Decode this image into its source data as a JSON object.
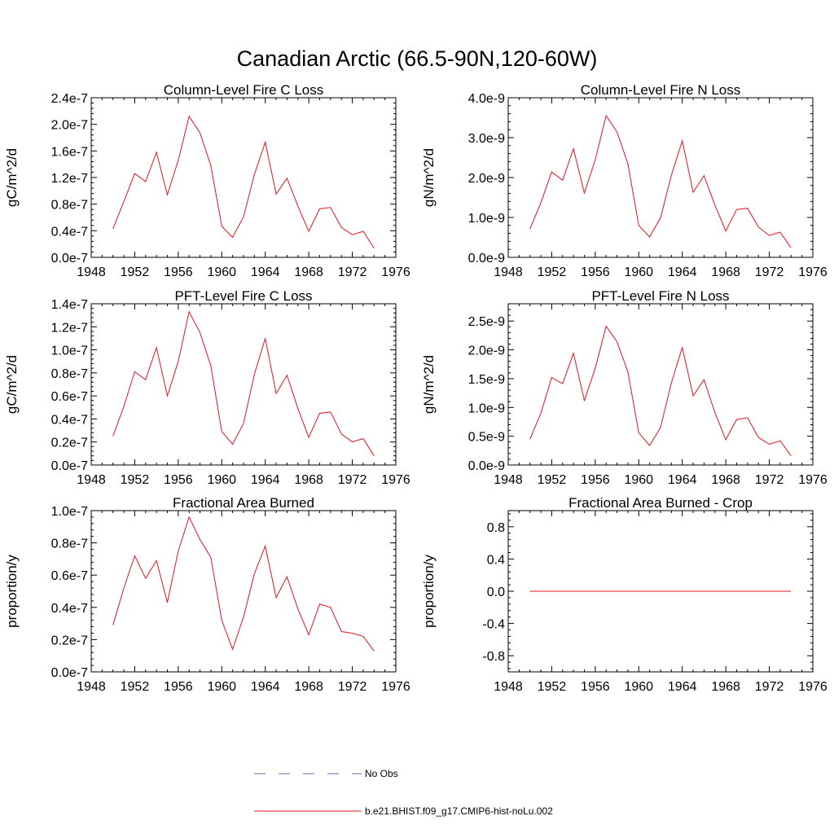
{
  "title": "Canadian Arctic (66.5-90N,120-60W)",
  "colors": {
    "model": "#e0141e",
    "obs": "#6a6aa8"
  },
  "legend": {
    "entries": [
      {
        "label": "No Obs",
        "style": "dashed",
        "color": "#6a6aa8"
      },
      {
        "label": "b.e21.BHIST.f09_g17.CMIP6-hist-noLu.002",
        "style": "solid",
        "color": "#e0141e"
      }
    ]
  },
  "chart_data": [
    {
      "type": "line",
      "title": "Column-Level Fire C Loss",
      "ylabel": "gC/m^2/d",
      "xlim": [
        1948,
        1976
      ],
      "ylim": [
        0,
        2.4e-07
      ],
      "xticks": [
        1948,
        1952,
        1956,
        1960,
        1964,
        1968,
        1972,
        1976
      ],
      "xtick_labels": [
        "1948",
        "1952",
        "1956",
        "1960",
        "1964",
        "1968",
        "1972",
        "1976"
      ],
      "yticks": [
        0,
        4e-08,
        8e-08,
        1.2e-07,
        1.6e-07,
        2e-07,
        2.4e-07
      ],
      "ytick_labels": [
        "0.0e-7",
        "0.4e-7",
        "0.8e-7",
        "1.2e-7",
        "1.6e-7",
        "2.0e-7",
        "2.4e-7"
      ],
      "x": [
        1950,
        1951,
        1952,
        1953,
        1954,
        1955,
        1956,
        1957,
        1958,
        1959,
        1960,
        1961,
        1962,
        1963,
        1964,
        1965,
        1966,
        1967,
        1968,
        1969,
        1970,
        1971,
        1972,
        1973,
        1974
      ],
      "series": [
        {
          "name": "b.e21.BHIST.f09_g17.CMIP6-hist-noLu.002",
          "values": [
            4.3e-08,
            8.4e-08,
            1.26e-07,
            1.14e-07,
            1.58e-07,
            9.4e-08,
            1.46e-07,
            2.12e-07,
            1.87e-07,
            1.38e-07,
            4.7e-08,
            3e-08,
            6.1e-08,
            1.25e-07,
            1.73e-07,
            9.5e-08,
            1.19e-07,
            7.7e-08,
            3.9e-08,
            7.3e-08,
            7.5e-08,
            4.5e-08,
            3.4e-08,
            3.9e-08,
            1.4e-08
          ]
        }
      ]
    },
    {
      "type": "line",
      "title": "Column-Level Fire N Loss",
      "ylabel": "gN/m^2/d",
      "xlim": [
        1948,
        1976
      ],
      "ylim": [
        0,
        4e-09
      ],
      "xticks": [
        1948,
        1952,
        1956,
        1960,
        1964,
        1968,
        1972,
        1976
      ],
      "xtick_labels": [
        "1948",
        "1952",
        "1956",
        "1960",
        "1964",
        "1968",
        "1972",
        "1976"
      ],
      "yticks": [
        0,
        1e-09,
        2e-09,
        3e-09,
        4e-09
      ],
      "ytick_labels": [
        "0.0e-9",
        "1.0e-9",
        "2.0e-9",
        "3.0e-9",
        "4.0e-9"
      ],
      "x": [
        1950,
        1951,
        1952,
        1953,
        1954,
        1955,
        1956,
        1957,
        1958,
        1959,
        1960,
        1961,
        1962,
        1963,
        1964,
        1965,
        1966,
        1967,
        1968,
        1969,
        1970,
        1971,
        1972,
        1973,
        1974
      ],
      "series": [
        {
          "name": "b.e21.BHIST.f09_g17.CMIP6-hist-noLu.002",
          "values": [
            7.1e-10,
            1.37e-09,
            2.14e-09,
            1.93e-09,
            2.72e-09,
            1.61e-09,
            2.45e-09,
            3.55e-09,
            3.14e-09,
            2.35e-09,
            8e-10,
            5.1e-10,
            9.9e-10,
            2.06e-09,
            2.92e-09,
            1.63e-09,
            2.05e-09,
            1.31e-09,
            6.6e-10,
            1.2e-09,
            1.23e-09,
            7.6e-10,
            5.5e-10,
            6.3e-10,
            2.4e-10
          ]
        }
      ]
    },
    {
      "type": "line",
      "title": "PFT-Level Fire C Loss",
      "ylabel": "gC/m^2/d",
      "xlim": [
        1948,
        1976
      ],
      "ylim": [
        0,
        1.4e-07
      ],
      "xticks": [
        1948,
        1952,
        1956,
        1960,
        1964,
        1968,
        1972,
        1976
      ],
      "xtick_labels": [
        "1948",
        "1952",
        "1956",
        "1960",
        "1964",
        "1968",
        "1972",
        "1976"
      ],
      "yticks": [
        0,
        2e-08,
        4e-08,
        6e-08,
        8e-08,
        1e-07,
        1.2e-07,
        1.4e-07
      ],
      "ytick_labels": [
        "0.0e-7",
        "0.2e-7",
        "0.4e-7",
        "0.6e-7",
        "0.8e-7",
        "1.0e-7",
        "1.2e-7",
        "1.4e-7"
      ],
      "x": [
        1950,
        1951,
        1952,
        1953,
        1954,
        1955,
        1956,
        1957,
        1958,
        1959,
        1960,
        1961,
        1962,
        1963,
        1964,
        1965,
        1966,
        1967,
        1968,
        1969,
        1970,
        1971,
        1972,
        1973,
        1974
      ],
      "series": [
        {
          "name": "b.e21.BHIST.f09_g17.CMIP6-hist-noLu.002",
          "values": [
            2.5e-08,
            5.1e-08,
            8.1e-08,
            7.4e-08,
            1.02e-07,
            6e-08,
            9e-08,
            1.33e-07,
            1.15e-07,
            8.6e-08,
            2.9e-08,
            1.8e-08,
            3.6e-08,
            7.9e-08,
            1.1e-07,
            6.2e-08,
            7.8e-08,
            4.9e-08,
            2.4e-08,
            4.5e-08,
            4.6e-08,
            2.7e-08,
            2e-08,
            2.3e-08,
            8e-09
          ]
        }
      ]
    },
    {
      "type": "line",
      "title": "PFT-Level Fire N Loss",
      "ylabel": "gN/m^2/d",
      "xlim": [
        1948,
        1976
      ],
      "ylim": [
        0,
        2.8e-09
      ],
      "xticks": [
        1948,
        1952,
        1956,
        1960,
        1964,
        1968,
        1972,
        1976
      ],
      "xtick_labels": [
        "1948",
        "1952",
        "1956",
        "1960",
        "1964",
        "1968",
        "1972",
        "1976"
      ],
      "yticks": [
        0,
        5e-10,
        1e-09,
        1.5e-09,
        2e-09,
        2.5e-09
      ],
      "ytick_labels": [
        "0.0e-9",
        "0.5e-9",
        "1.0e-9",
        "1.5e-9",
        "2.0e-9",
        "2.5e-9"
      ],
      "x": [
        1950,
        1951,
        1952,
        1953,
        1954,
        1955,
        1956,
        1957,
        1958,
        1959,
        1960,
        1961,
        1962,
        1963,
        1964,
        1965,
        1966,
        1967,
        1968,
        1969,
        1970,
        1971,
        1972,
        1973,
        1974
      ],
      "series": [
        {
          "name": "b.e21.BHIST.f09_g17.CMIP6-hist-noLu.002",
          "values": [
            4.5e-10,
            9e-10,
            1.52e-09,
            1.41e-09,
            1.94e-09,
            1.12e-09,
            1.68e-09,
            2.41e-09,
            2.14e-09,
            1.62e-09,
            5.6e-10,
            3.4e-10,
            6.5e-10,
            1.43e-09,
            2.04e-09,
            1.2e-09,
            1.48e-09,
            9.1e-10,
            4.4e-10,
            7.9e-10,
            8.2e-10,
            4.8e-10,
            3.6e-10,
            4.2e-10,
            1.6e-10
          ]
        }
      ]
    },
    {
      "type": "line",
      "title": "Fractional Area Burned",
      "ylabel": "proportion/y",
      "xlim": [
        1948,
        1976
      ],
      "ylim": [
        0,
        1e-07
      ],
      "xticks": [
        1948,
        1952,
        1956,
        1960,
        1964,
        1968,
        1972,
        1976
      ],
      "xtick_labels": [
        "1948",
        "1952",
        "1956",
        "1960",
        "1964",
        "1968",
        "1972",
        "1976"
      ],
      "yticks": [
        0,
        2e-08,
        4e-08,
        6e-08,
        8e-08,
        1e-07
      ],
      "ytick_labels": [
        "0.0e-7",
        "0.2e-7",
        "0.4e-7",
        "0.6e-7",
        "0.8e-7",
        "1.0e-7"
      ],
      "x": [
        1950,
        1951,
        1952,
        1953,
        1954,
        1955,
        1956,
        1957,
        1958,
        1959,
        1960,
        1961,
        1962,
        1963,
        1964,
        1965,
        1966,
        1967,
        1968,
        1969,
        1970,
        1971,
        1972,
        1973,
        1974
      ],
      "series": [
        {
          "name": "b.e21.BHIST.f09_g17.CMIP6-hist-noLu.002",
          "values": [
            2.9e-08,
            5.2e-08,
            7.2e-08,
            5.8e-08,
            6.9e-08,
            4.3e-08,
            7.5e-08,
            9.6e-08,
            8.2e-08,
            7.1e-08,
            3.2e-08,
            1.4e-08,
            3.4e-08,
            6.1e-08,
            7.8e-08,
            4.6e-08,
            5.9e-08,
            3.9e-08,
            2.3e-08,
            4.2e-08,
            4e-08,
            2.5e-08,
            2.4e-08,
            2.2e-08,
            1.3e-08
          ]
        }
      ]
    },
    {
      "type": "line",
      "title": "Fractional Area Burned - Crop",
      "ylabel": "proportion/y",
      "xlim": [
        1948,
        1976
      ],
      "ylim": [
        -1.0,
        1.0
      ],
      "xticks": [
        1948,
        1952,
        1956,
        1960,
        1964,
        1968,
        1972,
        1976
      ],
      "xtick_labels": [
        "1948",
        "1952",
        "1956",
        "1960",
        "1964",
        "1968",
        "1972",
        "1976"
      ],
      "yticks": [
        -0.8,
        -0.4,
        0.0,
        0.4,
        0.8
      ],
      "ytick_labels": [
        "-0.8",
        "-0.4",
        "0.0",
        "0.4",
        "0.8"
      ],
      "x": [
        1950,
        1951,
        1952,
        1953,
        1954,
        1955,
        1956,
        1957,
        1958,
        1959,
        1960,
        1961,
        1962,
        1963,
        1964,
        1965,
        1966,
        1967,
        1968,
        1969,
        1970,
        1971,
        1972,
        1973,
        1974
      ],
      "series": [
        {
          "name": "b.e21.BHIST.f09_g17.CMIP6-hist-noLu.002",
          "values": [
            0,
            0,
            0,
            0,
            0,
            0,
            0,
            0,
            0,
            0,
            0,
            0,
            0,
            0,
            0,
            0,
            0,
            0,
            0,
            0,
            0,
            0,
            0,
            0,
            0
          ]
        }
      ]
    }
  ]
}
